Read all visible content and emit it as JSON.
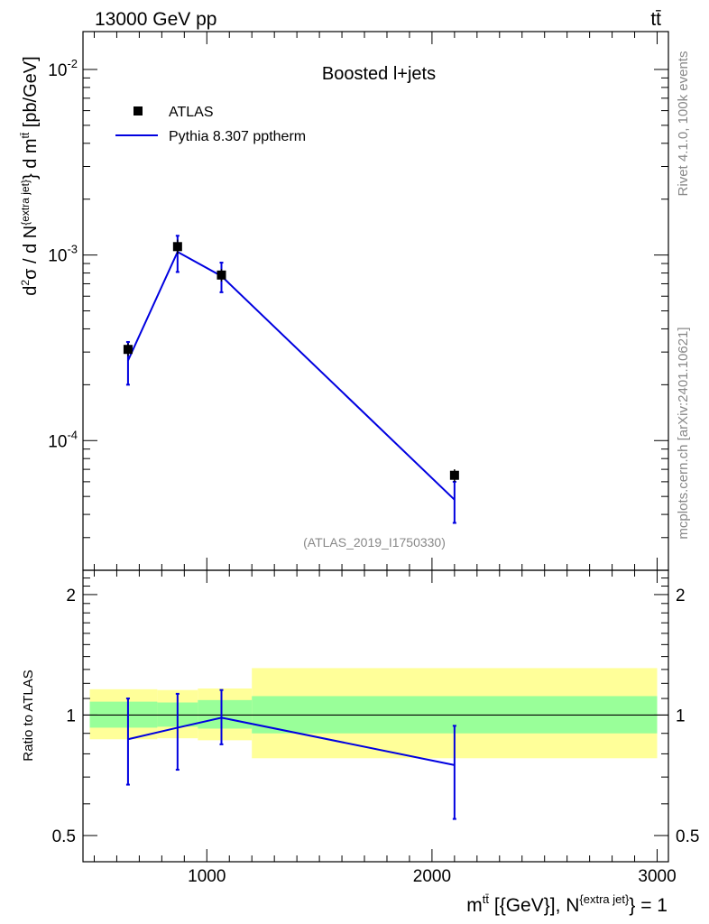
{
  "header": {
    "energy_label": "13000 GeV pp",
    "process_label": "tt̄"
  },
  "side": {
    "rivet_label": "Rivet 4.1.0,  100k events",
    "source_label": "mcplots.cern.ch [arXiv:2401.10621]"
  },
  "colors": {
    "mc": "#0000e0",
    "band_inner": "#99ff99",
    "band_outer": "#ffff99",
    "data": "#000000"
  },
  "chart_data": [
    {
      "type": "scatter",
      "panel": "main",
      "title": "Boosted l+jets",
      "analysis_label": "(ATLAS_2019_I1750330)",
      "ylabel": "d²σ / d N^{extra jet} d m^{tt̄} [pb/GeV]",
      "yscale": "log",
      "ylim": [
        2e-05,
        0.016
      ],
      "xlim": [
        450,
        3050
      ],
      "ytick_labels": [
        "10^{-2}",
        "10^{-3}",
        "10^{-4}"
      ],
      "legend": [
        "ATLAS",
        "Pythia 8.307 pptherm"
      ],
      "series": [
        {
          "name": "ATLAS",
          "kind": "points",
          "x": [
            650,
            870,
            1065,
            2100
          ],
          "y": [
            0.00031,
            0.00111,
            0.00078,
            6.5e-05
          ],
          "yerr_low": [
            2.5e-05,
            0.0001,
            6e-05,
            5e-06
          ],
          "yerr_high": [
            2.5e-05,
            0.0001,
            6e-05,
            5e-06
          ]
        },
        {
          "name": "Pythia 8.307 pptherm",
          "kind": "line",
          "x": [
            650,
            870,
            1065,
            2100
          ],
          "y": [
            0.00027,
            0.00104,
            0.00077,
            4.8e-05
          ],
          "yerr_low": [
            7e-05,
            0.00023,
            0.00014,
            1.2e-05
          ],
          "yerr_high": [
            7e-05,
            0.00023,
            0.00014,
            1.2e-05
          ]
        }
      ]
    },
    {
      "type": "line",
      "panel": "ratio",
      "ylabel": "Ratio to ATLAS",
      "xlabel": "m^{tt̄} [{GeV}], N^{extra jet} = 1",
      "yscale": "log",
      "ylim": [
        0.43,
        2.3
      ],
      "xlim": [
        450,
        3050
      ],
      "xtick_labels": [
        "1000",
        "2000",
        "3000"
      ],
      "ytick_labels": [
        "0.5",
        "1",
        "2"
      ],
      "ratio_line": 1.0,
      "bands": {
        "edges": [
          480,
          780,
          960,
          1200,
          3000
        ],
        "inner_low": [
          0.93,
          0.935,
          0.925,
          0.9
        ],
        "inner_high": [
          1.08,
          1.075,
          1.09,
          1.115
        ],
        "outer_low": [
          0.87,
          0.875,
          0.865,
          0.78
        ],
        "outer_high": [
          1.16,
          1.155,
          1.165,
          1.31
        ]
      },
      "series": [
        {
          "name": "Pythia 8.307 pptherm",
          "x": [
            650,
            870,
            1065,
            2100
          ],
          "y": [
            0.87,
            0.93,
            0.985,
            0.75
          ],
          "yerr_low": [
            0.2,
            0.2,
            0.14,
            0.2
          ],
          "yerr_high": [
            0.23,
            0.2,
            0.17,
            0.19
          ]
        }
      ]
    }
  ]
}
